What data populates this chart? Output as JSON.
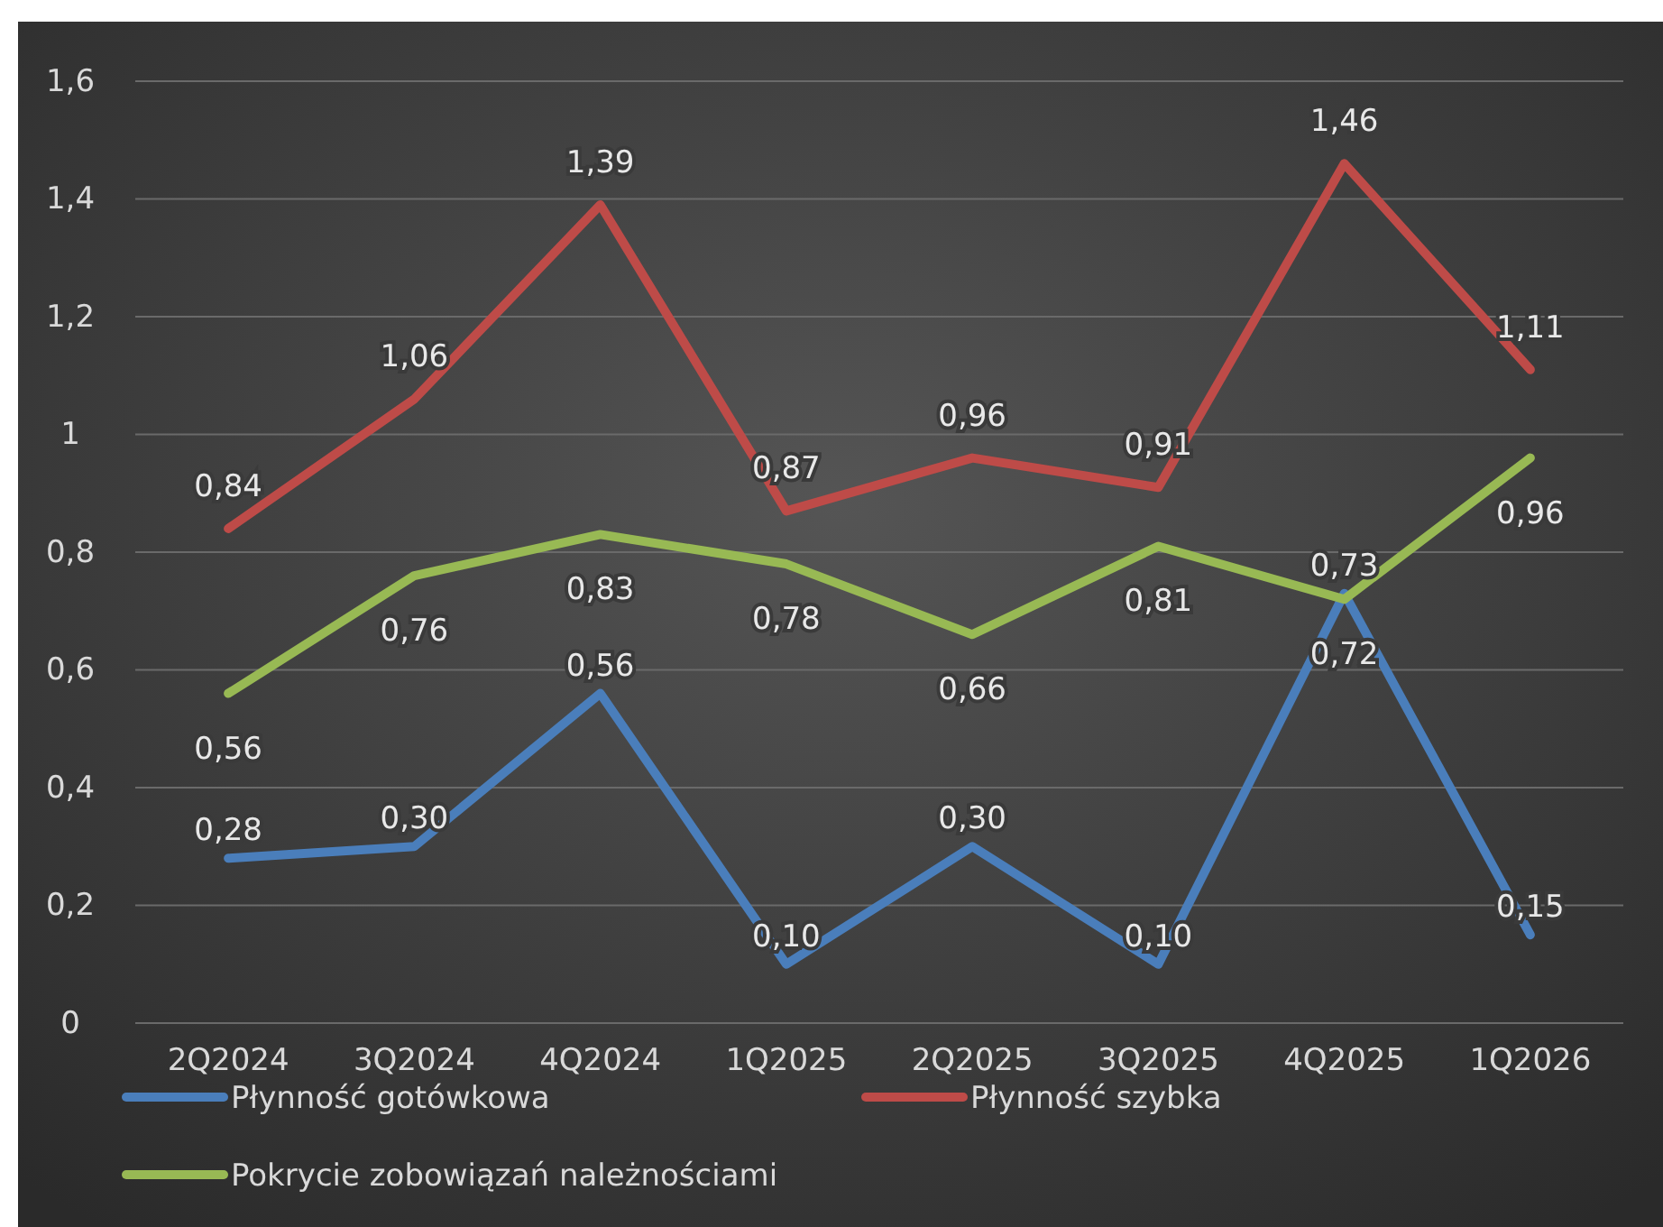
{
  "chart_data": {
    "type": "line",
    "categories": [
      "2Q2024",
      "3Q2024",
      "4Q2024",
      "1Q2025",
      "2Q2025",
      "3Q2025",
      "4Q2025",
      "1Q2026"
    ],
    "series": [
      {
        "name": "Płynność gotówkowa",
        "color": "#4a7ebb",
        "values": [
          0.28,
          0.3,
          0.56,
          0.1,
          0.3,
          0.1,
          0.73,
          0.15
        ],
        "value_labels": [
          "0,28",
          "0,30",
          "0,56",
          "0,10",
          "0,30",
          "0,10",
          "0,73",
          "0,15"
        ]
      },
      {
        "name": "Płynność szybka",
        "color": "#be4b48",
        "values": [
          0.84,
          1.06,
          1.39,
          0.87,
          0.96,
          0.91,
          1.46,
          1.11
        ],
        "value_labels": [
          "0,84",
          "1,06",
          "1,39",
          "0,87",
          "0,96",
          "0,91",
          "1,46",
          "1,11"
        ]
      },
      {
        "name": "Pokrycie zobowiązań należnościami",
        "color": "#98b954",
        "values": [
          0.56,
          0.76,
          0.83,
          0.78,
          0.66,
          0.81,
          0.72,
          0.96
        ],
        "value_labels": [
          "0,56",
          "0,76",
          "0,83",
          "0,78",
          "0,66",
          "0,81",
          "0,72",
          "0,96"
        ]
      }
    ],
    "ylim": [
      0,
      1.6
    ],
    "yticks": [
      0,
      {
        "value": 0.2,
        "label": "0,2"
      },
      {
        "value": 0.4,
        "label": "0,4"
      },
      {
        "value": 0.6,
        "label": "0,6"
      },
      {
        "value": 0.8,
        "label": "0,8"
      },
      1,
      {
        "value": 1.2,
        "label": "1,2"
      },
      {
        "value": 1.4,
        "label": "1,4"
      },
      {
        "value": 1.6,
        "label": "1,6"
      }
    ],
    "grid": "y",
    "legend": "bottom",
    "marker": "none",
    "line_style": "solid"
  }
}
